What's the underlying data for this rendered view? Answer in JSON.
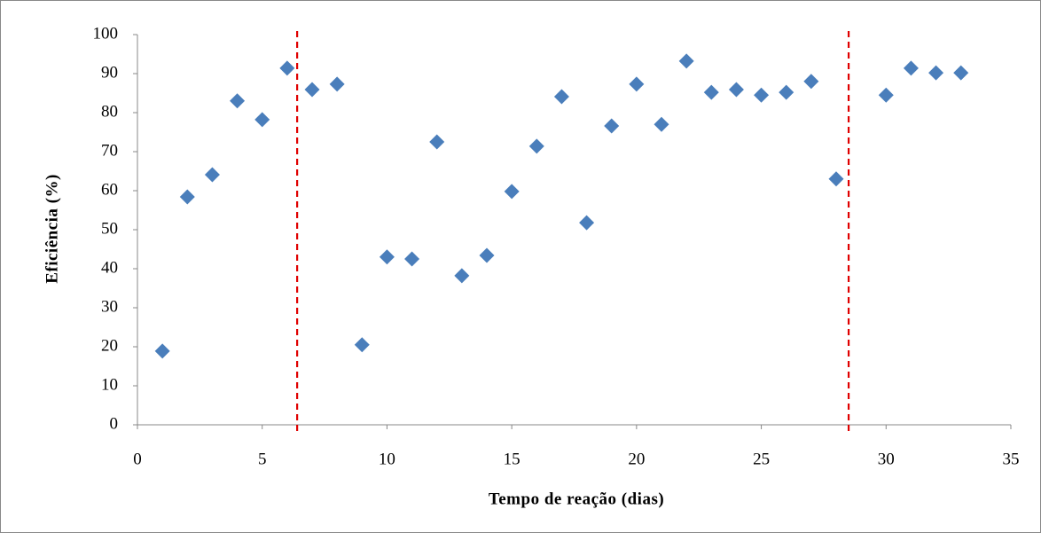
{
  "chart_data": {
    "type": "scatter",
    "xlabel": "Tempo de reação (dias)",
    "ylabel": "Eficiência (%)",
    "x": [
      1,
      2,
      3,
      4,
      5,
      6,
      7,
      8,
      9,
      10,
      11,
      12,
      13,
      14,
      15,
      16,
      17,
      18,
      19,
      20,
      21,
      22,
      23,
      24,
      25,
      26,
      27,
      28,
      30,
      31,
      32,
      33
    ],
    "series": [
      {
        "color": "#4a7ebb",
        "values": [
          18.9,
          58.4,
          64.1,
          83.0,
          78.2,
          91.4,
          85.9,
          87.3,
          20.5,
          43.0,
          42.5,
          72.5,
          38.2,
          43.4,
          59.8,
          71.4,
          84.1,
          51.8,
          76.6,
          87.3,
          77.0,
          93.2,
          85.2,
          85.9,
          84.5,
          85.2,
          88.0,
          63.0,
          84.5,
          91.4,
          90.2,
          90.2
        ]
      }
    ],
    "vlines": {
      "color": "#e00000",
      "values": [
        6.4,
        28.5
      ]
    },
    "xlim": [
      0,
      35
    ],
    "xticks": [
      0,
      5,
      10,
      15,
      20,
      25,
      30,
      35
    ],
    "ylim": [
      0,
      100
    ],
    "yticks": [
      0,
      10,
      20,
      30,
      40,
      50,
      60,
      70,
      80,
      90,
      100
    ],
    "grid": false
  }
}
